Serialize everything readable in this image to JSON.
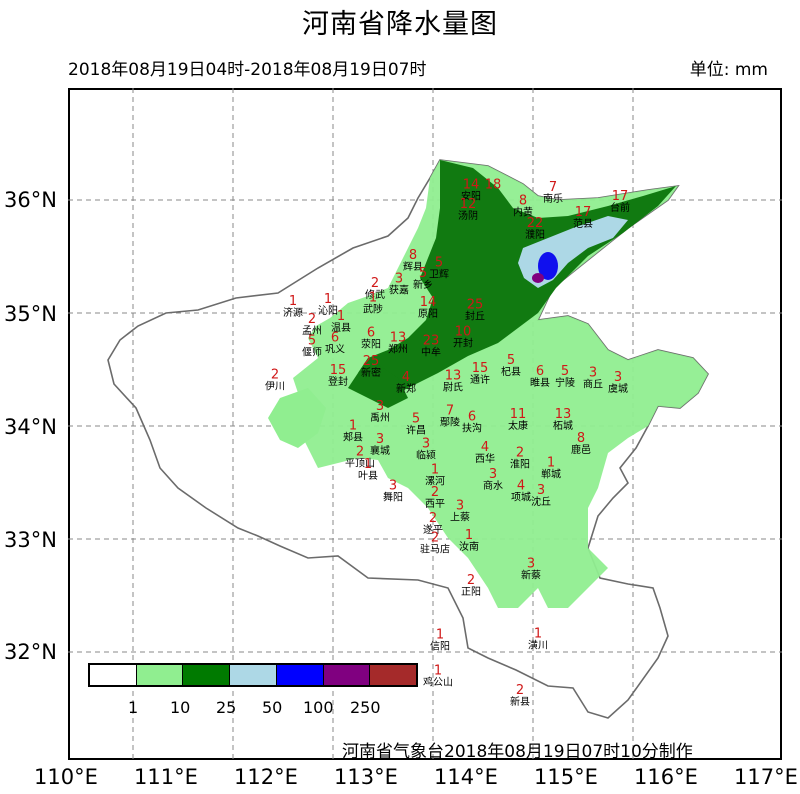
{
  "title": "河南省降水量图",
  "period": "2018年08月19日04时-2018年08月19日07时",
  "unit": "单位: mm",
  "producer": "河南省气象台2018年08月19日07时10分制作",
  "lat_labels": [
    "36°N",
    "35°N",
    "34°N",
    "33°N",
    "32°N"
  ],
  "lon_labels": [
    "110°E",
    "111°E",
    "112°E",
    "113°E",
    "114°E",
    "115°E",
    "116°E",
    "117°E"
  ],
  "legend": {
    "colors": [
      "#ffffff",
      "#90ee90",
      "#007a00",
      "#add8e6",
      "#0000ff",
      "#800080",
      "#a52a2a"
    ],
    "labels": [
      "1",
      "10",
      "25",
      "50",
      "100",
      "250"
    ]
  },
  "map_colors": {
    "light": "#90ee90",
    "dark": "#117a11",
    "blue": "#add8e6",
    "deep": "#1010ee",
    "purple": "#800080",
    "border": "#666666"
  },
  "rainfall_labels": [
    {
      "v": "7",
      "city": "南乐",
      "lon": 115.2,
      "lat": 36.08
    },
    {
      "v": "17",
      "city": "台前",
      "lon": 115.87,
      "lat": 36.0
    },
    {
      "v": "8",
      "city": "内黄",
      "lon": 114.9,
      "lat": 35.96
    },
    {
      "v": "17",
      "city": "范县",
      "lon": 115.5,
      "lat": 35.86
    },
    {
      "v": "14",
      "city": "安阳",
      "lon": 114.38,
      "lat": 36.1
    },
    {
      "v": "18",
      "city": "",
      "lon": 114.6,
      "lat": 36.1
    },
    {
      "v": "12",
      "city": "汤阴",
      "lon": 114.35,
      "lat": 35.93
    },
    {
      "v": "22",
      "city": "濮阳",
      "lon": 115.02,
      "lat": 35.76
    },
    {
      "v": "8",
      "city": "辉县",
      "lon": 113.8,
      "lat": 35.48
    },
    {
      "v": "5",
      "city": "卫辉",
      "lon": 114.06,
      "lat": 35.41
    },
    {
      "v": "2",
      "city": "修武",
      "lon": 113.42,
      "lat": 35.23
    },
    {
      "v": "3",
      "city": "获嘉",
      "lon": 113.66,
      "lat": 35.27
    },
    {
      "v": "5",
      "city": "新乡",
      "lon": 113.9,
      "lat": 35.32
    },
    {
      "v": "1",
      "city": "武陟",
      "lon": 113.4,
      "lat": 35.1
    },
    {
      "v": "14",
      "city": "原阳",
      "lon": 113.95,
      "lat": 35.06
    },
    {
      "v": "25",
      "city": "封丘",
      "lon": 114.42,
      "lat": 35.04
    },
    {
      "v": "1",
      "city": "沁阳",
      "lon": 112.95,
      "lat": 35.09
    },
    {
      "v": "2",
      "city": "孟州",
      "lon": 112.79,
      "lat": 34.91
    },
    {
      "v": "1",
      "city": "温县",
      "lon": 113.08,
      "lat": 34.94
    },
    {
      "v": "1",
      "city": "济源",
      "lon": 112.6,
      "lat": 35.07
    },
    {
      "v": "6",
      "city": "荥阳",
      "lon": 113.38,
      "lat": 34.79
    },
    {
      "v": "13",
      "city": "郑州",
      "lon": 113.65,
      "lat": 34.75
    },
    {
      "v": "23",
      "city": "中牟",
      "lon": 113.98,
      "lat": 34.72
    },
    {
      "v": "10",
      "city": "开封",
      "lon": 114.3,
      "lat": 34.8
    },
    {
      "v": "5",
      "city": "偃师",
      "lon": 112.79,
      "lat": 34.72
    },
    {
      "v": "6",
      "city": "巩义",
      "lon": 113.02,
      "lat": 34.75
    },
    {
      "v": "2",
      "city": "伊川",
      "lon": 112.42,
      "lat": 34.42
    },
    {
      "v": "15",
      "city": "登封",
      "lon": 113.05,
      "lat": 34.46
    },
    {
      "v": "25",
      "city": "新密",
      "lon": 113.38,
      "lat": 34.54
    },
    {
      "v": "4",
      "city": "新郑",
      "lon": 113.73,
      "lat": 34.4
    },
    {
      "v": "5",
      "city": "杞县",
      "lon": 114.78,
      "lat": 34.55
    },
    {
      "v": "15",
      "city": "通许",
      "lon": 114.47,
      "lat": 34.48
    },
    {
      "v": "13",
      "city": "尉氏",
      "lon": 114.2,
      "lat": 34.41
    },
    {
      "v": "6",
      "city": "睢县",
      "lon": 115.07,
      "lat": 34.45
    },
    {
      "v": "5",
      "city": "宁陵",
      "lon": 115.32,
      "lat": 34.45
    },
    {
      "v": "3",
      "city": "商丘",
      "lon": 115.6,
      "lat": 34.44
    },
    {
      "v": "3",
      "city": "虞城",
      "lon": 115.85,
      "lat": 34.4
    },
    {
      "v": "3",
      "city": "禹州",
      "lon": 113.47,
      "lat": 34.14
    },
    {
      "v": "5",
      "city": "许昌",
      "lon": 113.83,
      "lat": 34.03
    },
    {
      "v": "7",
      "city": "鄢陵",
      "lon": 114.17,
      "lat": 34.1
    },
    {
      "v": "6",
      "city": "扶沟",
      "lon": 114.39,
      "lat": 34.05
    },
    {
      "v": "11",
      "city": "太康",
      "lon": 114.85,
      "lat": 34.07
    },
    {
      "v": "13",
      "city": "柘城",
      "lon": 115.3,
      "lat": 34.07
    },
    {
      "v": "8",
      "city": "鹿邑",
      "lon": 115.48,
      "lat": 33.86
    },
    {
      "v": "1",
      "city": "郏县",
      "lon": 113.2,
      "lat": 33.97
    },
    {
      "v": "3",
      "city": "襄城",
      "lon": 113.47,
      "lat": 33.85
    },
    {
      "v": "3",
      "city": "临颍",
      "lon": 113.93,
      "lat": 33.81
    },
    {
      "v": "4",
      "city": "西华",
      "lon": 114.52,
      "lat": 33.78
    },
    {
      "v": "2",
      "city": "淮阳",
      "lon": 114.87,
      "lat": 33.73
    },
    {
      "v": "1",
      "city": "郸城",
      "lon": 115.18,
      "lat": 33.64
    },
    {
      "v": "2",
      "city": "平顶山",
      "lon": 113.27,
      "lat": 33.74
    },
    {
      "v": "1",
      "city": "叶县",
      "lon": 113.35,
      "lat": 33.63
    },
    {
      "v": "1",
      "city": "漯河",
      "lon": 114.02,
      "lat": 33.58
    },
    {
      "v": "3",
      "city": "商水",
      "lon": 114.6,
      "lat": 33.54
    },
    {
      "v": "4",
      "city": "项城",
      "lon": 114.88,
      "lat": 33.44
    },
    {
      "v": "3",
      "city": "沈丘",
      "lon": 115.08,
      "lat": 33.4
    },
    {
      "v": "3",
      "city": "舞阳",
      "lon": 113.6,
      "lat": 33.44
    },
    {
      "v": "2",
      "city": "西平",
      "lon": 114.02,
      "lat": 33.38
    },
    {
      "v": "3",
      "city": "上蔡",
      "lon": 114.27,
      "lat": 33.26
    },
    {
      "v": "2",
      "city": "遂平",
      "lon": 114.0,
      "lat": 33.15
    },
    {
      "v": "2",
      "city": "驻马店",
      "lon": 114.02,
      "lat": 32.98
    },
    {
      "v": "1",
      "city": "汝南",
      "lon": 114.36,
      "lat": 33.0
    },
    {
      "v": "3",
      "city": "新蔡",
      "lon": 114.98,
      "lat": 32.75
    },
    {
      "v": "2",
      "city": "正阳",
      "lon": 114.38,
      "lat": 32.6
    },
    {
      "v": "1",
      "city": "信阳",
      "lon": 114.07,
      "lat": 32.12
    },
    {
      "v": "1",
      "city": "潢川",
      "lon": 115.05,
      "lat": 32.13
    },
    {
      "v": "1",
      "city": "鸡公山",
      "lon": 114.05,
      "lat": 31.8
    },
    {
      "v": "2",
      "city": "新县",
      "lon": 114.87,
      "lat": 31.63
    }
  ]
}
